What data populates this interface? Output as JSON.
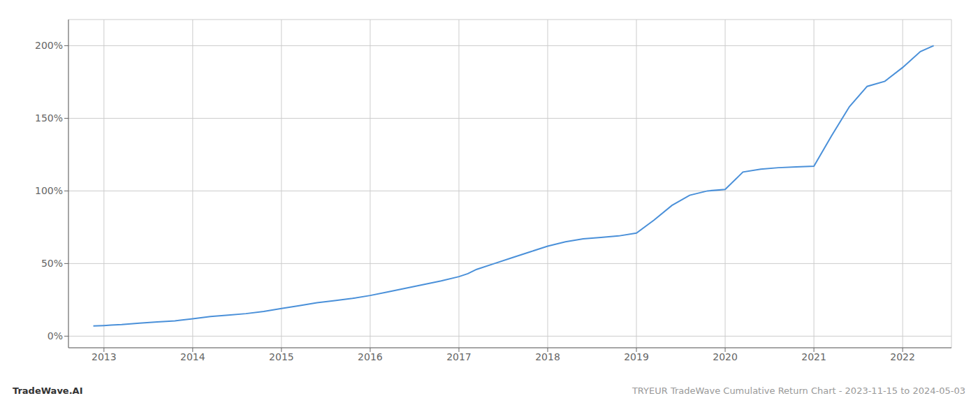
{
  "chart_data": {
    "type": "line",
    "annotations": [
      "TradeWave.AI",
      "TRYEUR TradeWave Cumulative Return Chart - 2023-11-15 to 2024-05-03"
    ],
    "x": [
      2012.88,
      2013.0,
      2013.08,
      2013.2,
      2013.4,
      2013.6,
      2013.8,
      2014.0,
      2014.2,
      2014.4,
      2014.6,
      2014.8,
      2015.0,
      2015.2,
      2015.4,
      2015.6,
      2015.8,
      2016.0,
      2016.2,
      2016.4,
      2016.6,
      2016.8,
      2017.0,
      2017.1,
      2017.2,
      2017.4,
      2017.6,
      2017.8,
      2018.0,
      2018.2,
      2018.4,
      2018.6,
      2018.8,
      2019.0,
      2019.2,
      2019.4,
      2019.6,
      2019.8,
      2020.0,
      2020.15,
      2020.2,
      2020.4,
      2020.6,
      2020.8,
      2021.0,
      2021.2,
      2021.4,
      2021.6,
      2021.8,
      2022.0,
      2022.2,
      2022.35
    ],
    "values": [
      7,
      7.3,
      7.6,
      8.0,
      9.0,
      9.8,
      10.5,
      12.0,
      13.5,
      14.5,
      15.5,
      17.0,
      19.0,
      21.0,
      23.0,
      24.5,
      26.0,
      28.0,
      30.5,
      33.0,
      35.5,
      38.0,
      41.0,
      43.0,
      46.0,
      50.0,
      54.0,
      58.0,
      62.0,
      65.0,
      67.0,
      68.0,
      69.0,
      71.0,
      80.0,
      90.0,
      97.0,
      100.0,
      101.0,
      110.0,
      113.0,
      115.0,
      116.0,
      116.5,
      117.0,
      138.0,
      158.0,
      172.0,
      175.5,
      185.0,
      196.0,
      200.0
    ],
    "color": "#4a90d9",
    "xlim": [
      2012.6,
      2022.55
    ],
    "xticks": [
      2013,
      2014,
      2015,
      2016,
      2017,
      2018,
      2019,
      2020,
      2021,
      2022
    ],
    "ylim": [
      -8,
      218
    ],
    "yticks": [
      {
        "value": 0,
        "label": "0%"
      },
      {
        "value": 50,
        "label": "50%"
      },
      {
        "value": 100,
        "label": "100%"
      },
      {
        "value": 150,
        "label": "150%"
      },
      {
        "value": 200,
        "label": "200%"
      }
    ],
    "grid": true
  }
}
